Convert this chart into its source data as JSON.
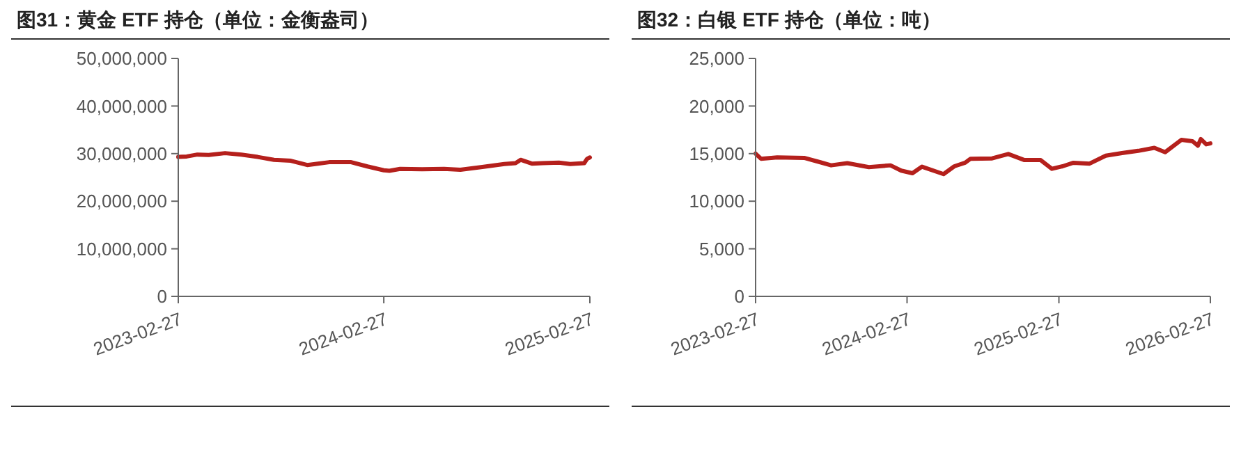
{
  "chart_data": [
    {
      "type": "line",
      "title": "图31：黄金 ETF 持仓（单位：金衡盎司）",
      "xlim": [
        "2023-02-27",
        "2025-02-27"
      ],
      "xticks": [
        "2023-02-27",
        "2024-02-27",
        "2025-02-27"
      ],
      "ylim": [
        0,
        50000000
      ],
      "yticks": [
        {
          "value": 0,
          "label": "0"
        },
        {
          "value": 10000000,
          "label": "10,000,000"
        },
        {
          "value": 20000000,
          "label": "20,000,000"
        },
        {
          "value": 30000000,
          "label": "30,000,000"
        },
        {
          "value": 40000000,
          "label": "40,000,000"
        },
        {
          "value": 50000000,
          "label": "50,000,000"
        }
      ],
      "grid": false,
      "line_style": "solid",
      "marker": "none",
      "series": [
        {
          "color": "#b5201c",
          "x": [
            "2023-02-27",
            "2023-03-14",
            "2023-04-02",
            "2023-04-22",
            "2023-05-21",
            "2023-06-19",
            "2023-07-18",
            "2023-08-16",
            "2023-09-15",
            "2023-10-14",
            "2023-11-02",
            "2023-11-22",
            "2023-12-31",
            "2024-01-29",
            "2024-02-27",
            "2024-03-08",
            "2024-03-27",
            "2024-05-05",
            "2024-06-13",
            "2024-07-12",
            "2024-08-20",
            "2024-09-28",
            "2024-10-18",
            "2024-10-27",
            "2024-11-16",
            "2024-12-05",
            "2025-01-03",
            "2025-01-23",
            "2025-02-17",
            "2025-02-22",
            "2025-02-27"
          ],
          "values": [
            29300000,
            29400000,
            29800000,
            29700000,
            30100000,
            29800000,
            29300000,
            28700000,
            28500000,
            27600000,
            27900000,
            28200000,
            28200000,
            27300000,
            26500000,
            26400000,
            26800000,
            26700000,
            26800000,
            26600000,
            27200000,
            27800000,
            28000000,
            28700000,
            27900000,
            28000000,
            28100000,
            27800000,
            28000000,
            28900000,
            29200000
          ]
        }
      ]
    },
    {
      "type": "line",
      "title": "图32：白银 ETF 持仓（单位：吨）",
      "xlim": [
        "2023-02-27",
        "2026-02-27"
      ],
      "xticks": [
        "2023-02-27",
        "2024-02-27",
        "2025-02-27",
        "2026-02-27"
      ],
      "ylim": [
        0,
        25000
      ],
      "yticks": [
        {
          "value": 0,
          "label": "0"
        },
        {
          "value": 5000,
          "label": "5,000"
        },
        {
          "value": 10000,
          "label": "10,000"
        },
        {
          "value": 15000,
          "label": "15,000"
        },
        {
          "value": 20000,
          "label": "20,000"
        },
        {
          "value": 25000,
          "label": "25,000"
        }
      ],
      "grid": false,
      "line_style": "solid",
      "marker": "none",
      "series": [
        {
          "color": "#b5201c",
          "x": [
            "2023-02-27",
            "2023-03-12",
            "2023-04-20",
            "2023-06-24",
            "2023-08-02",
            "2023-08-28",
            "2023-10-06",
            "2023-11-27",
            "2024-01-18",
            "2024-02-13",
            "2024-03-11",
            "2024-04-03",
            "2024-05-25",
            "2024-06-20",
            "2024-07-16",
            "2024-07-29",
            "2024-09-19",
            "2024-10-28",
            "2024-12-06",
            "2025-01-14",
            "2025-02-10",
            "2025-03-08",
            "2025-04-03",
            "2025-05-12",
            "2025-06-20",
            "2025-07-29",
            "2025-09-06",
            "2025-10-15",
            "2025-11-10",
            "2025-12-19",
            "2026-01-15",
            "2026-01-28",
            "2026-02-04",
            "2026-02-17",
            "2026-02-27"
          ],
          "values": [
            15000,
            14460,
            14600,
            14550,
            14090,
            13770,
            14000,
            13580,
            13770,
            13210,
            12940,
            13630,
            12850,
            13670,
            14040,
            14460,
            14500,
            14960,
            14320,
            14320,
            13400,
            13670,
            14040,
            13950,
            14780,
            15060,
            15290,
            15610,
            15150,
            16440,
            16300,
            15840,
            16530,
            15980,
            16070
          ]
        }
      ]
    }
  ]
}
